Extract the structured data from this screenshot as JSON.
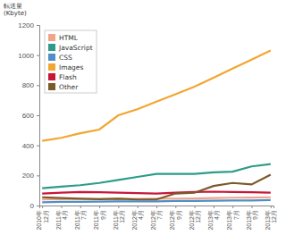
{
  "chart_data": {
    "type": "line",
    "y_label": "転送量 (Kbyte)",
    "categories": [
      "2010年12月",
      "2011年4月",
      "2011年7月",
      "2011年9月",
      "2011年12月",
      "2012年4月",
      "2012年7月",
      "2012年9月",
      "2012年12月",
      "2013年4月",
      "2013年7月",
      "2013年9月",
      "2013年12月"
    ],
    "series": [
      {
        "name": "HTML",
        "color": "#f2a48a",
        "values": [
          40,
          42,
          43,
          43,
          44,
          44,
          45,
          46,
          47,
          50,
          52,
          53,
          55
        ]
      },
      {
        "name": "JavaScript",
        "color": "#2e9b8a",
        "values": [
          115,
          125,
          135,
          150,
          170,
          190,
          210,
          210,
          210,
          220,
          225,
          260,
          275
        ]
      },
      {
        "name": "CSS",
        "color": "#4f8fc8",
        "values": [
          22,
          24,
          25,
          26,
          27,
          28,
          28,
          30,
          30,
          32,
          33,
          34,
          36
        ]
      },
      {
        "name": "Images",
        "color": "#f2a630",
        "values": [
          430,
          450,
          480,
          505,
          600,
          640,
          690,
          740,
          790,
          850,
          910,
          970,
          1030
        ]
      },
      {
        "name": "Flash",
        "color": "#c8163a",
        "values": [
          80,
          85,
          90,
          88,
          85,
          83,
          80,
          85,
          90,
          92,
          90,
          88,
          85
        ]
      },
      {
        "name": "Other",
        "color": "#7b5a2a",
        "values": [
          55,
          50,
          45,
          42,
          45,
          40,
          40,
          80,
          85,
          130,
          150,
          140,
          205
        ]
      }
    ],
    "ylim": [
      0,
      1200
    ],
    "yticks": [
      0,
      200,
      400,
      600,
      800,
      1000,
      1200
    ],
    "grid": false,
    "legend": "top-left"
  }
}
